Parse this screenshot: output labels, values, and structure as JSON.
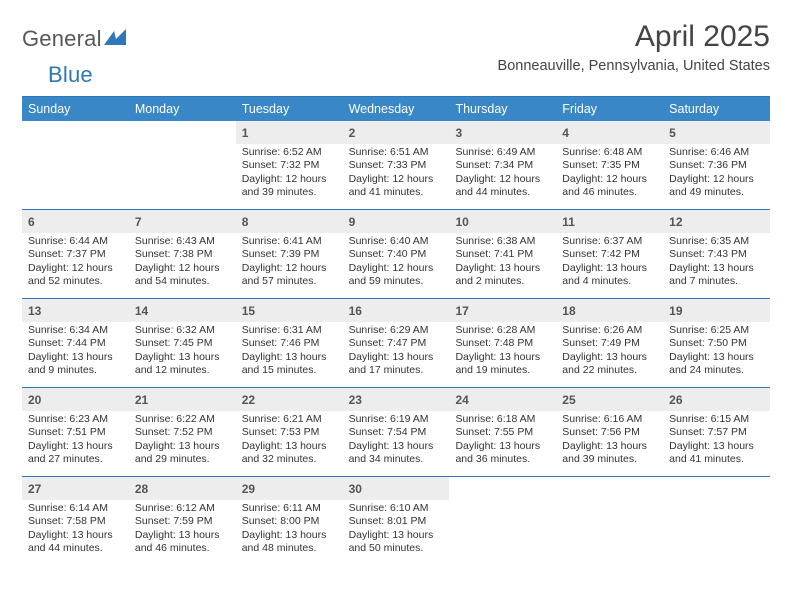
{
  "logo": {
    "text_a": "General",
    "text_b": "Blue"
  },
  "title": "April 2025",
  "subtitle": "Bonneauville, Pennsylvania, United States",
  "colors": {
    "accent": "#3a87c7",
    "rule": "#2e77b8",
    "daynum_bg": "#ededed",
    "text": "#333333"
  },
  "dow": [
    "Sunday",
    "Monday",
    "Tuesday",
    "Wednesday",
    "Thursday",
    "Friday",
    "Saturday"
  ],
  "grid": [
    [
      null,
      null,
      {
        "n": "1",
        "sunrise": "6:52 AM",
        "sunset": "7:32 PM",
        "daylight_a": "12 hours",
        "daylight_b": "and 39 minutes."
      },
      {
        "n": "2",
        "sunrise": "6:51 AM",
        "sunset": "7:33 PM",
        "daylight_a": "12 hours",
        "daylight_b": "and 41 minutes."
      },
      {
        "n": "3",
        "sunrise": "6:49 AM",
        "sunset": "7:34 PM",
        "daylight_a": "12 hours",
        "daylight_b": "and 44 minutes."
      },
      {
        "n": "4",
        "sunrise": "6:48 AM",
        "sunset": "7:35 PM",
        "daylight_a": "12 hours",
        "daylight_b": "and 46 minutes."
      },
      {
        "n": "5",
        "sunrise": "6:46 AM",
        "sunset": "7:36 PM",
        "daylight_a": "12 hours",
        "daylight_b": "and 49 minutes."
      }
    ],
    [
      {
        "n": "6",
        "sunrise": "6:44 AM",
        "sunset": "7:37 PM",
        "daylight_a": "12 hours",
        "daylight_b": "and 52 minutes."
      },
      {
        "n": "7",
        "sunrise": "6:43 AM",
        "sunset": "7:38 PM",
        "daylight_a": "12 hours",
        "daylight_b": "and 54 minutes."
      },
      {
        "n": "8",
        "sunrise": "6:41 AM",
        "sunset": "7:39 PM",
        "daylight_a": "12 hours",
        "daylight_b": "and 57 minutes."
      },
      {
        "n": "9",
        "sunrise": "6:40 AM",
        "sunset": "7:40 PM",
        "daylight_a": "12 hours",
        "daylight_b": "and 59 minutes."
      },
      {
        "n": "10",
        "sunrise": "6:38 AM",
        "sunset": "7:41 PM",
        "daylight_a": "13 hours",
        "daylight_b": "and 2 minutes."
      },
      {
        "n": "11",
        "sunrise": "6:37 AM",
        "sunset": "7:42 PM",
        "daylight_a": "13 hours",
        "daylight_b": "and 4 minutes."
      },
      {
        "n": "12",
        "sunrise": "6:35 AM",
        "sunset": "7:43 PM",
        "daylight_a": "13 hours",
        "daylight_b": "and 7 minutes."
      }
    ],
    [
      {
        "n": "13",
        "sunrise": "6:34 AM",
        "sunset": "7:44 PM",
        "daylight_a": "13 hours",
        "daylight_b": "and 9 minutes."
      },
      {
        "n": "14",
        "sunrise": "6:32 AM",
        "sunset": "7:45 PM",
        "daylight_a": "13 hours",
        "daylight_b": "and 12 minutes."
      },
      {
        "n": "15",
        "sunrise": "6:31 AM",
        "sunset": "7:46 PM",
        "daylight_a": "13 hours",
        "daylight_b": "and 15 minutes."
      },
      {
        "n": "16",
        "sunrise": "6:29 AM",
        "sunset": "7:47 PM",
        "daylight_a": "13 hours",
        "daylight_b": "and 17 minutes."
      },
      {
        "n": "17",
        "sunrise": "6:28 AM",
        "sunset": "7:48 PM",
        "daylight_a": "13 hours",
        "daylight_b": "and 19 minutes."
      },
      {
        "n": "18",
        "sunrise": "6:26 AM",
        "sunset": "7:49 PM",
        "daylight_a": "13 hours",
        "daylight_b": "and 22 minutes."
      },
      {
        "n": "19",
        "sunrise": "6:25 AM",
        "sunset": "7:50 PM",
        "daylight_a": "13 hours",
        "daylight_b": "and 24 minutes."
      }
    ],
    [
      {
        "n": "20",
        "sunrise": "6:23 AM",
        "sunset": "7:51 PM",
        "daylight_a": "13 hours",
        "daylight_b": "and 27 minutes."
      },
      {
        "n": "21",
        "sunrise": "6:22 AM",
        "sunset": "7:52 PM",
        "daylight_a": "13 hours",
        "daylight_b": "and 29 minutes."
      },
      {
        "n": "22",
        "sunrise": "6:21 AM",
        "sunset": "7:53 PM",
        "daylight_a": "13 hours",
        "daylight_b": "and 32 minutes."
      },
      {
        "n": "23",
        "sunrise": "6:19 AM",
        "sunset": "7:54 PM",
        "daylight_a": "13 hours",
        "daylight_b": "and 34 minutes."
      },
      {
        "n": "24",
        "sunrise": "6:18 AM",
        "sunset": "7:55 PM",
        "daylight_a": "13 hours",
        "daylight_b": "and 36 minutes."
      },
      {
        "n": "25",
        "sunrise": "6:16 AM",
        "sunset": "7:56 PM",
        "daylight_a": "13 hours",
        "daylight_b": "and 39 minutes."
      },
      {
        "n": "26",
        "sunrise": "6:15 AM",
        "sunset": "7:57 PM",
        "daylight_a": "13 hours",
        "daylight_b": "and 41 minutes."
      }
    ],
    [
      {
        "n": "27",
        "sunrise": "6:14 AM",
        "sunset": "7:58 PM",
        "daylight_a": "13 hours",
        "daylight_b": "and 44 minutes."
      },
      {
        "n": "28",
        "sunrise": "6:12 AM",
        "sunset": "7:59 PM",
        "daylight_a": "13 hours",
        "daylight_b": "and 46 minutes."
      },
      {
        "n": "29",
        "sunrise": "6:11 AM",
        "sunset": "8:00 PM",
        "daylight_a": "13 hours",
        "daylight_b": "and 48 minutes."
      },
      {
        "n": "30",
        "sunrise": "6:10 AM",
        "sunset": "8:01 PM",
        "daylight_a": "13 hours",
        "daylight_b": "and 50 minutes."
      },
      null,
      null,
      null
    ]
  ],
  "labels": {
    "sunrise_prefix": "Sunrise: ",
    "sunset_prefix": "Sunset: ",
    "daylight_prefix": "Daylight: "
  }
}
